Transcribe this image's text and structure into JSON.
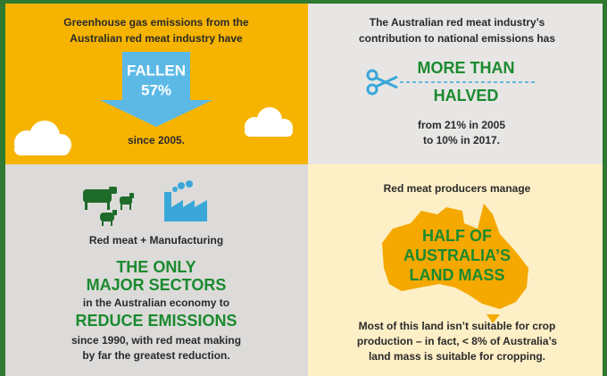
{
  "panels": {
    "emissions_fall": {
      "intro": [
        "Greenhouse gas emissions from the",
        "Australian red meat industry have"
      ],
      "arrow": [
        "FALLEN",
        "57%"
      ],
      "since": "since 2005."
    },
    "national_share": {
      "intro": [
        "The Australian red meat industry’s",
        "contribution to national emissions has"
      ],
      "headline": [
        "MORE THAN",
        "HALVED"
      ],
      "detail": [
        "from 21% in 2005",
        "to 10% in 2017."
      ]
    },
    "sectors": {
      "label": "Red meat + Manufacturing",
      "headline": [
        "THE ONLY",
        "MAJOR SECTORS"
      ],
      "middle": "in the Australian economy to",
      "headline2": "REDUCE EMISSIONS",
      "detail": [
        "since 1990, with red meat making",
        "by far the greatest reduction."
      ]
    },
    "land": {
      "intro": "Red meat producers manage",
      "headline": [
        "HALF OF",
        "AUSTRALIA’S",
        "LAND MASS"
      ],
      "detail": [
        "Most of this land isn’t suitable for crop",
        "production – in fact, < 8% of Australia’s",
        "land mass is suitable for cropping."
      ]
    }
  }
}
